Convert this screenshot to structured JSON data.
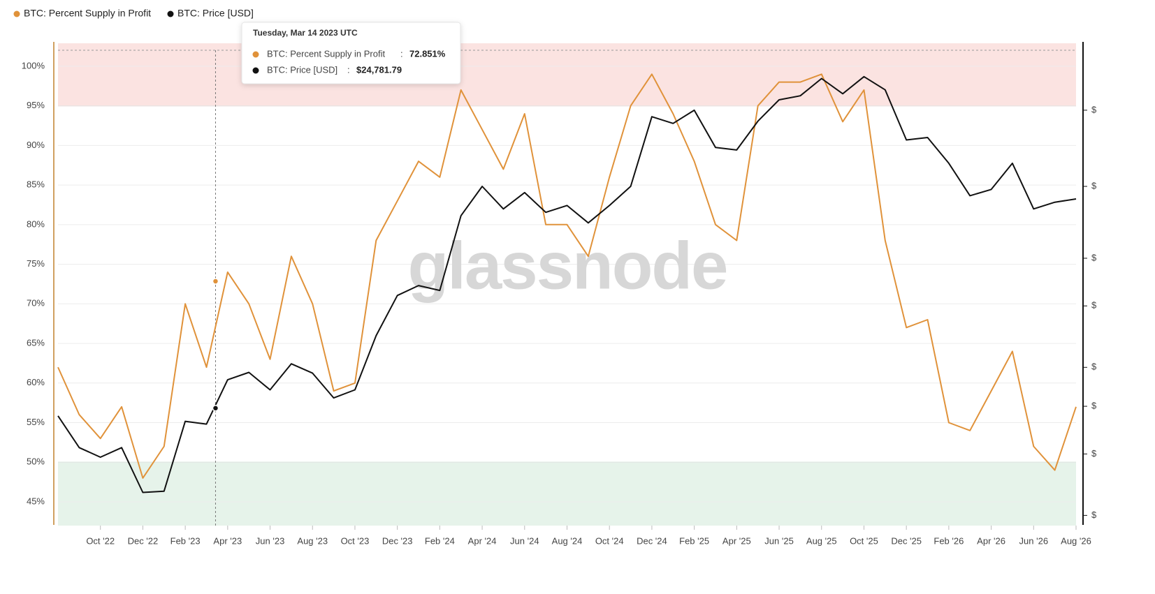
{
  "chart_data": {
    "type": "line",
    "watermark": "glassnode",
    "x": [
      "2022-08",
      "2022-09",
      "2022-10",
      "2022-11",
      "2022-12",
      "2023-01",
      "2023-02",
      "2023-03",
      "2023-04",
      "2023-05",
      "2023-06",
      "2023-07",
      "2023-08",
      "2023-09",
      "2023-10",
      "2023-11",
      "2023-12",
      "2024-01",
      "2024-02",
      "2024-03",
      "2024-04",
      "2024-05",
      "2024-06",
      "2024-07",
      "2024-08",
      "2024-09",
      "2024-10",
      "2024-11",
      "2024-12",
      "2025-01",
      "2025-02",
      "2025-03",
      "2025-04",
      "2025-05",
      "2025-06",
      "2025-07",
      "2025-08",
      "2025-09",
      "2025-10",
      "2025-11",
      "2025-12",
      "2026-01",
      "2026-02",
      "2026-03",
      "2026-04",
      "2026-05",
      "2026-06",
      "2026-07",
      "2026-08"
    ],
    "series": [
      {
        "name": "BTC: Percent Supply in Profit",
        "color": "#e0923a",
        "axis": "y",
        "values": [
          62,
          56,
          53,
          57,
          48,
          52,
          70,
          62,
          74,
          70,
          63,
          76,
          70,
          59,
          60,
          78,
          83,
          88,
          86,
          97,
          92,
          87,
          94,
          80,
          80,
          76,
          86,
          95,
          99,
          94,
          88,
          80,
          78,
          95,
          98,
          98,
          99,
          93,
          97,
          78,
          67,
          68,
          55,
          54,
          59,
          64,
          52,
          49,
          57
        ]
      },
      {
        "name": "BTC: Price [USD]",
        "color": "#111111",
        "axis": "y2",
        "values": [
          23900,
          20600,
          19700,
          20600,
          16700,
          16800,
          23300,
          23000,
          28300,
          29300,
          27000,
          30500,
          29200,
          26000,
          27000,
          34800,
          42000,
          44000,
          43000,
          61000,
          70000,
          63000,
          68000,
          62000,
          64000,
          59000,
          64000,
          70000,
          97000,
          94000,
          100000,
          84000,
          83000,
          95000,
          105000,
          107000,
          116000,
          108000,
          117000,
          110000,
          87000,
          88000,
          78000,
          67000,
          69000,
          78000,
          63000,
          65000,
          66000
        ]
      }
    ],
    "xlim": [
      "2022-08",
      "2026-08"
    ],
    "xticks": [
      {
        "value": "2022-10",
        "label": "Oct '22"
      },
      {
        "value": "2022-12",
        "label": "Dec '22"
      },
      {
        "value": "2023-02",
        "label": "Feb '23"
      },
      {
        "value": "2023-04",
        "label": "Apr '23"
      },
      {
        "value": "2023-06",
        "label": "Jun '23"
      },
      {
        "value": "2023-08",
        "label": "Aug '23"
      },
      {
        "value": "2023-10",
        "label": "Oct '23"
      },
      {
        "value": "2023-12",
        "label": "Dec '23"
      },
      {
        "value": "2024-02",
        "label": "Feb '24"
      },
      {
        "value": "2024-04",
        "label": "Apr '24"
      },
      {
        "value": "2024-06",
        "label": "Jun '24"
      },
      {
        "value": "2024-08",
        "label": "Aug '24"
      },
      {
        "value": "2024-10",
        "label": "Oct '24"
      },
      {
        "value": "2024-12",
        "label": "Dec '24"
      },
      {
        "value": "2025-02",
        "label": "Feb '25"
      },
      {
        "value": "2025-04",
        "label": "Apr '25"
      },
      {
        "value": "2025-06",
        "label": "Jun '25"
      },
      {
        "value": "2025-08",
        "label": "Aug '25"
      },
      {
        "value": "2025-10",
        "label": "Oct '25"
      },
      {
        "value": "2025-12",
        "label": "Dec '25"
      },
      {
        "value": "2026-02",
        "label": "Feb '26"
      },
      {
        "value": "2026-04",
        "label": "Apr '26"
      },
      {
        "value": "2026-06",
        "label": "Jun '26"
      },
      {
        "value": "2026-08",
        "label": "Aug '26"
      }
    ],
    "ylim": [
      42,
      102.9
    ],
    "yticks": [
      {
        "value": 45,
        "label": "45%"
      },
      {
        "value": 50,
        "label": "50%"
      },
      {
        "value": 55,
        "label": "55%"
      },
      {
        "value": 60,
        "label": "60%"
      },
      {
        "value": 65,
        "label": "65%"
      },
      {
        "value": 70,
        "label": "70%"
      },
      {
        "value": 75,
        "label": "75%"
      },
      {
        "value": 80,
        "label": "80%"
      },
      {
        "value": 85,
        "label": "85%"
      },
      {
        "value": 90,
        "label": "90%"
      },
      {
        "value": 95,
        "label": "95%"
      },
      {
        "value": 100,
        "label": "100%"
      }
    ],
    "y2lim": [
      14300,
      136800
    ],
    "y2scale": "log",
    "y2ticks": [
      {
        "value": 15000,
        "label": "$"
      },
      {
        "value": 20000,
        "label": "$"
      },
      {
        "value": 25000,
        "label": "$"
      },
      {
        "value": 30000,
        "label": "$"
      },
      {
        "value": 40000,
        "label": "$"
      },
      {
        "value": 50000,
        "label": "$"
      },
      {
        "value": 70000,
        "label": "$"
      },
      {
        "value": 100000,
        "label": "$"
      }
    ],
    "grid": true,
    "bands": [
      {
        "from": 95,
        "color": "#fbe3e1",
        "edge": "#c98f8a"
      },
      {
        "to": 50,
        "color": "#e6f3ea",
        "edge": "#9dcaa9"
      }
    ],
    "tooltip": {
      "title": "Tuesday, Mar 14 2023 UTC",
      "x": "2023-03-14",
      "items": [
        {
          "value": 72.851,
          "label": "72.851%"
        },
        {
          "value": 24781.79,
          "label": "$24,781.79"
        }
      ]
    }
  }
}
